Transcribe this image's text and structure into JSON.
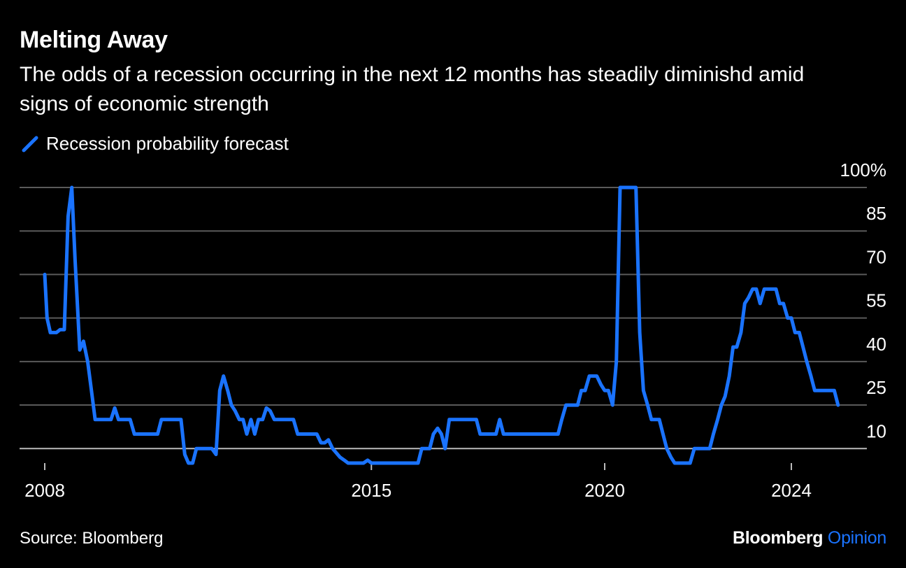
{
  "header": {
    "title": "Melting Away",
    "subtitle": "The odds of a recession occurring in the next 12 months has steadily diminishd amid signs of economic strength"
  },
  "legend": {
    "label": "Recession probability forecast"
  },
  "footer": {
    "source": "Source: Bloomberg",
    "brand": "Bloomberg",
    "brand_accent": "Opinion"
  },
  "colors": {
    "background": "#000000",
    "line": "#1a73ff",
    "grid": "#555555"
  },
  "chart_data": {
    "type": "line",
    "title": "Melting Away",
    "subtitle": "The odds of a recession occurring in the next 12 months has steadily diminishd amid signs of economic strength",
    "xlabel": "",
    "ylabel": "",
    "xlim": [
      2007.7,
      2025.0
    ],
    "ylim": [
      5,
      100
    ],
    "grid": true,
    "legend_position": "top-left",
    "x_ticks": [
      2008,
      2015,
      2020,
      2024
    ],
    "x_tick_labels": [
      "2008",
      "2015",
      "2020",
      "2024"
    ],
    "y_ticks": [
      100,
      85,
      70,
      55,
      40,
      25,
      10
    ],
    "y_tick_labels": [
      "100%",
      "85",
      "70",
      "55",
      "40",
      "25",
      "10"
    ],
    "series": [
      {
        "name": "Recession probability forecast",
        "color": "#1a73ff",
        "points": [
          [
            2008.0,
            70
          ],
          [
            2008.05,
            55
          ],
          [
            2008.12,
            50
          ],
          [
            2008.25,
            50
          ],
          [
            2008.33,
            51
          ],
          [
            2008.42,
            51
          ],
          [
            2008.5,
            90
          ],
          [
            2008.58,
            100
          ],
          [
            2008.65,
            75
          ],
          [
            2008.75,
            44
          ],
          [
            2008.83,
            47
          ],
          [
            2008.92,
            40
          ],
          [
            2009.0,
            30
          ],
          [
            2009.08,
            20
          ],
          [
            2009.25,
            20
          ],
          [
            2009.42,
            20
          ],
          [
            2009.5,
            24
          ],
          [
            2009.58,
            20
          ],
          [
            2009.67,
            20
          ],
          [
            2009.83,
            20
          ],
          [
            2009.92,
            15
          ],
          [
            2010.08,
            15
          ],
          [
            2010.25,
            15
          ],
          [
            2010.42,
            15
          ],
          [
            2010.5,
            20
          ],
          [
            2010.67,
            20
          ],
          [
            2010.83,
            20
          ],
          [
            2010.92,
            20
          ],
          [
            2011.0,
            8
          ],
          [
            2011.08,
            5
          ],
          [
            2011.17,
            5
          ],
          [
            2011.25,
            10
          ],
          [
            2011.42,
            10
          ],
          [
            2011.58,
            10
          ],
          [
            2011.67,
            8
          ],
          [
            2011.75,
            30
          ],
          [
            2011.83,
            35
          ],
          [
            2011.92,
            30
          ],
          [
            2012.0,
            25
          ],
          [
            2012.08,
            23
          ],
          [
            2012.17,
            20
          ],
          [
            2012.25,
            20
          ],
          [
            2012.33,
            15
          ],
          [
            2012.42,
            20
          ],
          [
            2012.5,
            15
          ],
          [
            2012.58,
            20
          ],
          [
            2012.67,
            20
          ],
          [
            2012.75,
            24
          ],
          [
            2012.83,
            23
          ],
          [
            2012.92,
            20
          ],
          [
            2013.08,
            20
          ],
          [
            2013.17,
            20
          ],
          [
            2013.33,
            20
          ],
          [
            2013.42,
            15
          ],
          [
            2013.58,
            15
          ],
          [
            2013.75,
            15
          ],
          [
            2013.83,
            15
          ],
          [
            2013.92,
            12
          ],
          [
            2014.0,
            12
          ],
          [
            2014.08,
            13
          ],
          [
            2014.17,
            10
          ],
          [
            2014.33,
            7
          ],
          [
            2014.42,
            6
          ],
          [
            2014.5,
            5
          ],
          [
            2014.67,
            5
          ],
          [
            2014.83,
            5
          ],
          [
            2014.92,
            6
          ],
          [
            2015.0,
            5
          ],
          [
            2015.25,
            5
          ],
          [
            2015.5,
            5
          ],
          [
            2015.75,
            5
          ],
          [
            2015.92,
            5
          ],
          [
            2016.0,
            5
          ],
          [
            2016.08,
            10
          ],
          [
            2016.17,
            10
          ],
          [
            2016.25,
            10
          ],
          [
            2016.33,
            15
          ],
          [
            2016.42,
            17
          ],
          [
            2016.5,
            15
          ],
          [
            2016.58,
            10
          ],
          [
            2016.67,
            20
          ],
          [
            2016.75,
            20
          ],
          [
            2016.92,
            20
          ],
          [
            2017.08,
            20
          ],
          [
            2017.25,
            20
          ],
          [
            2017.33,
            15
          ],
          [
            2017.5,
            15
          ],
          [
            2017.67,
            15
          ],
          [
            2017.75,
            20
          ],
          [
            2017.83,
            15
          ],
          [
            2018.0,
            15
          ],
          [
            2018.25,
            15
          ],
          [
            2018.5,
            15
          ],
          [
            2018.75,
            15
          ],
          [
            2018.92,
            15
          ],
          [
            2019.0,
            15
          ],
          [
            2019.08,
            20
          ],
          [
            2019.17,
            25
          ],
          [
            2019.25,
            25
          ],
          [
            2019.33,
            25
          ],
          [
            2019.42,
            25
          ],
          [
            2019.5,
            30
          ],
          [
            2019.58,
            30
          ],
          [
            2019.67,
            35
          ],
          [
            2019.83,
            35
          ],
          [
            2019.92,
            32
          ],
          [
            2020.0,
            30
          ],
          [
            2020.08,
            30
          ],
          [
            2020.17,
            25
          ],
          [
            2020.25,
            40
          ],
          [
            2020.33,
            100
          ],
          [
            2020.5,
            100
          ],
          [
            2020.67,
            100
          ],
          [
            2020.75,
            50
          ],
          [
            2020.83,
            30
          ],
          [
            2020.92,
            25
          ],
          [
            2021.0,
            20
          ],
          [
            2021.08,
            20
          ],
          [
            2021.17,
            20
          ],
          [
            2021.25,
            15
          ],
          [
            2021.33,
            10
          ],
          [
            2021.42,
            7
          ],
          [
            2021.5,
            5
          ],
          [
            2021.67,
            5
          ],
          [
            2021.83,
            5
          ],
          [
            2021.92,
            10
          ],
          [
            2022.0,
            10
          ],
          [
            2022.17,
            10
          ],
          [
            2022.25,
            10
          ],
          [
            2022.33,
            15
          ],
          [
            2022.42,
            20
          ],
          [
            2022.5,
            25
          ],
          [
            2022.58,
            28
          ],
          [
            2022.67,
            35
          ],
          [
            2022.75,
            45
          ],
          [
            2022.83,
            45
          ],
          [
            2022.92,
            50
          ],
          [
            2023.0,
            60
          ],
          [
            2023.08,
            62
          ],
          [
            2023.17,
            65
          ],
          [
            2023.25,
            65
          ],
          [
            2023.33,
            60
          ],
          [
            2023.42,
            65
          ],
          [
            2023.5,
            65
          ],
          [
            2023.67,
            65
          ],
          [
            2023.75,
            60
          ],
          [
            2023.83,
            60
          ],
          [
            2023.92,
            55
          ],
          [
            2024.0,
            55
          ],
          [
            2024.08,
            50
          ],
          [
            2024.17,
            50
          ],
          [
            2024.25,
            45
          ],
          [
            2024.33,
            40
          ],
          [
            2024.42,
            35
          ],
          [
            2024.5,
            30
          ],
          [
            2024.67,
            30
          ],
          [
            2024.83,
            30
          ],
          [
            2024.92,
            30
          ],
          [
            2025.0,
            25
          ]
        ]
      }
    ]
  }
}
